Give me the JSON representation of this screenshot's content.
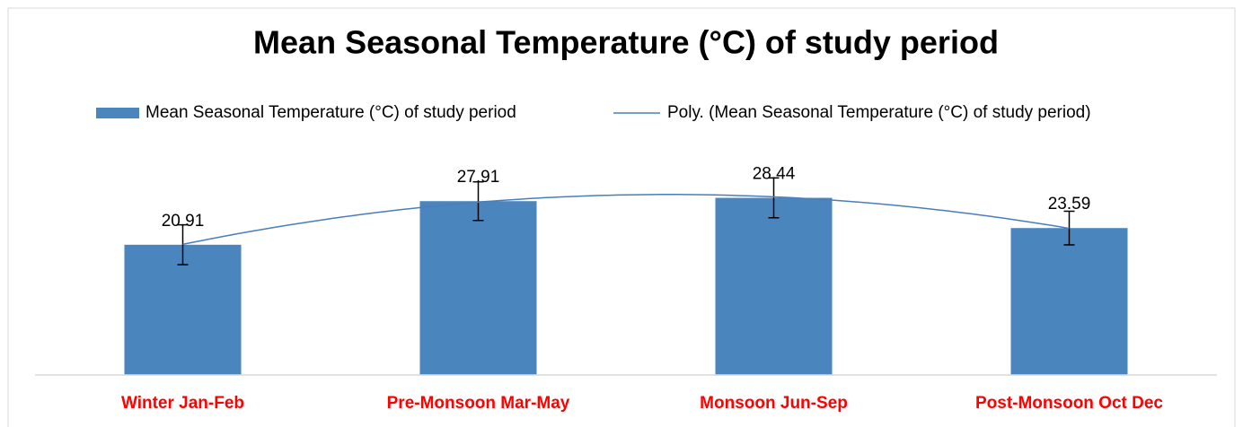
{
  "chart_data": {
    "type": "bar",
    "title": "Mean Seasonal Temperature (°C) of study period",
    "categories": [
      "Winter Jan-Feb",
      "Pre-Monsoon Mar-May",
      "Monsoon Jun-Sep",
      "Post-Monsoon  Oct Dec"
    ],
    "series": [
      {
        "name": "Mean Seasonal Temperature (°C) of study period",
        "color": "#4a86bd",
        "values": [
          20.91,
          27.91,
          28.44,
          23.59
        ],
        "errors": [
          3.2,
          3.1,
          3.2,
          2.7
        ]
      }
    ],
    "trendline": {
      "name": "Poly. (Mean Seasonal Temperature (°C) of study period)",
      "order": 2,
      "color": "#4a7ebb"
    },
    "ylim": [
      0,
      35
    ],
    "category_color": "#ff0000",
    "legend": "top"
  }
}
